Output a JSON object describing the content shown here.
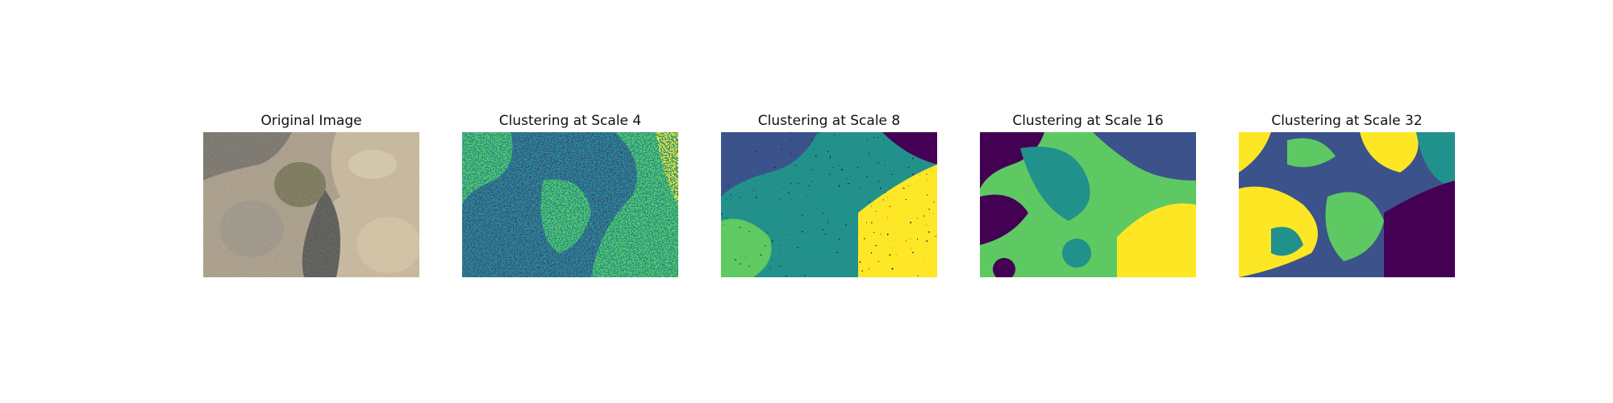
{
  "panels": [
    {
      "title": "Original Image"
    },
    {
      "title": "Clustering at Scale 4"
    },
    {
      "title": "Clustering at Scale 8"
    },
    {
      "title": "Clustering at Scale 16"
    },
    {
      "title": "Clustering at Scale 32"
    }
  ],
  "colors": {
    "cluster_palette": [
      "#440154",
      "#3b528b",
      "#21918c",
      "#5ec962",
      "#fde725"
    ],
    "photo_tones": [
      "#c9b898",
      "#a89a82",
      "#5e5a4a",
      "#6e6a3a",
      "#3a3a34",
      "#d8c9a8"
    ]
  }
}
